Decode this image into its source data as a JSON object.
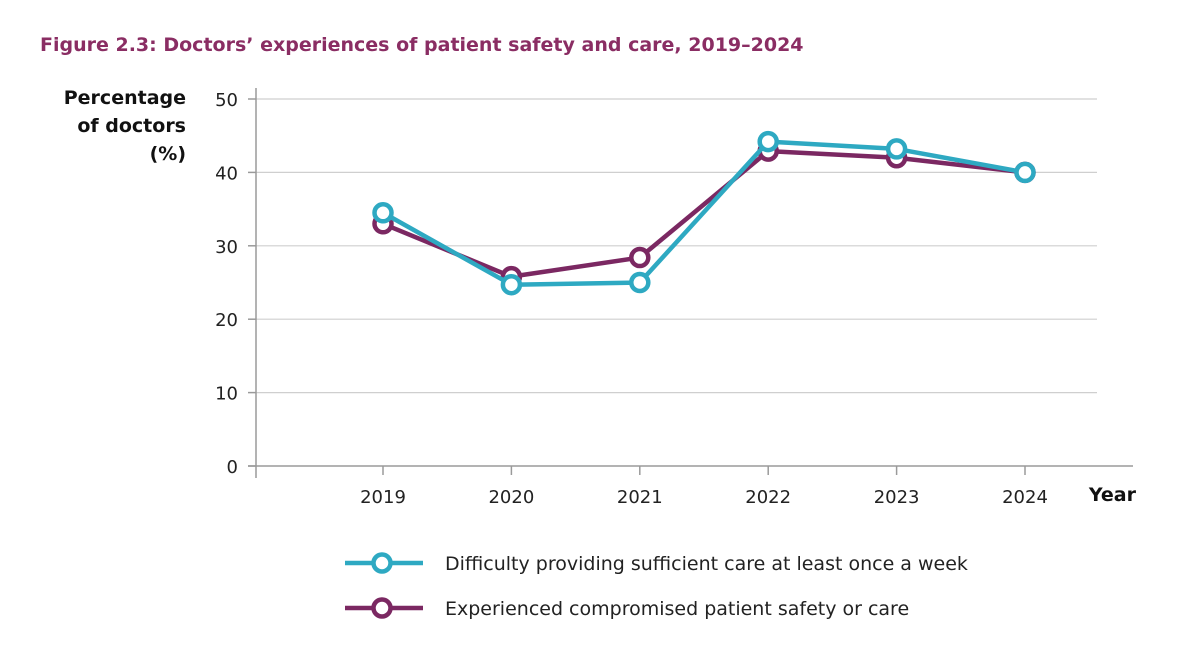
{
  "chart_data": {
    "type": "line",
    "title": "Figure 2.3: Doctors’ experiences of patient safety and care, 2019–2024",
    "ylabel_lines": [
      "Percentage",
      "of doctors",
      "(%)"
    ],
    "xlabel": "Year",
    "categories": [
      "2019",
      "2020",
      "2021",
      "2022",
      "2023",
      "2024"
    ],
    "yticks": [
      0,
      10,
      20,
      30,
      40,
      50
    ],
    "ylim": [
      0,
      50
    ],
    "grid": true,
    "legend_position": "bottom",
    "series": [
      {
        "name": "Difficulty providing sufficient care at least once a week",
        "color": "#2ea9c2",
        "values": [
          34.5,
          24.7,
          25.0,
          44.2,
          43.2,
          40.0
        ]
      },
      {
        "name": "Experienced compromised patient safety or care",
        "color": "#7b2862",
        "values": [
          33.0,
          25.8,
          28.4,
          42.9,
          42.0,
          40.0
        ]
      }
    ]
  }
}
